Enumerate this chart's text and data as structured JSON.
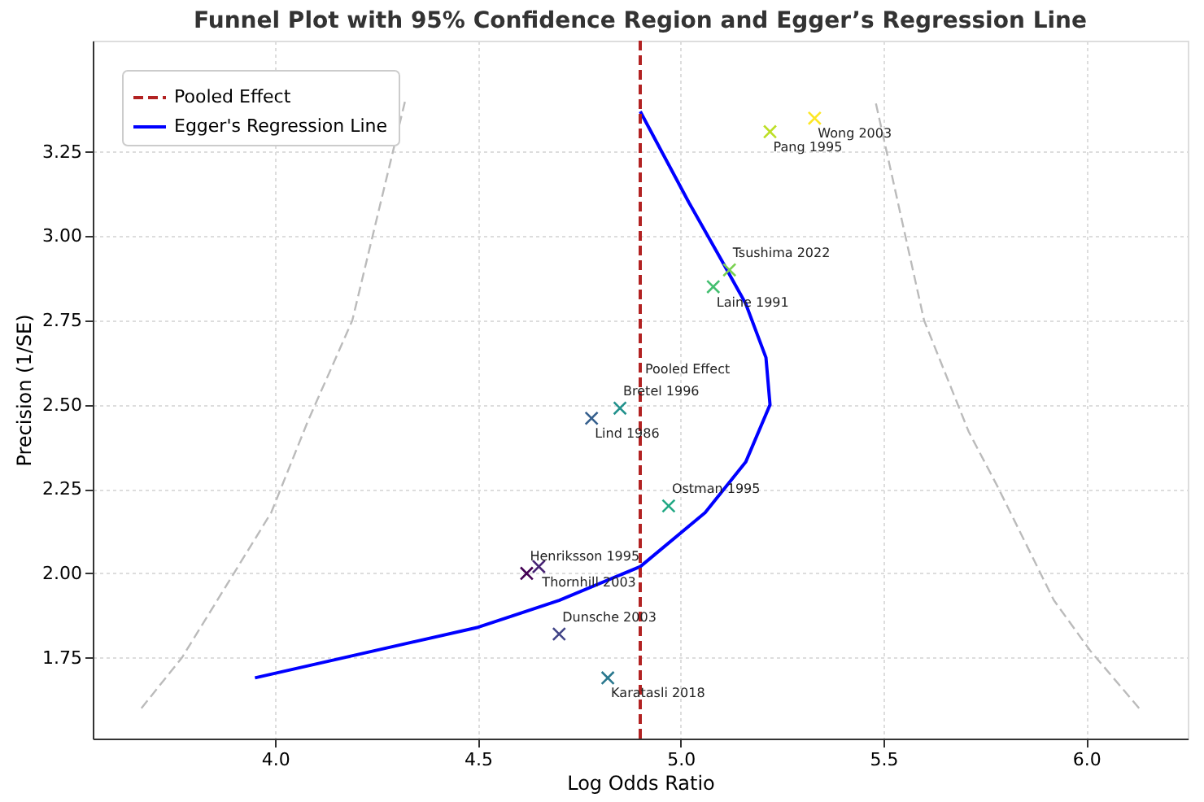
{
  "chart_data": {
    "type": "scatter",
    "title": "Funnel Plot with 95% Confidence Region and Egger’s Regression Line",
    "xlabel": "Log Odds Ratio",
    "ylabel": "Precision (1/SE)",
    "xlim": [
      3.55,
      6.25
    ],
    "ylim": [
      1.51,
      3.58
    ],
    "xticks": [
      {
        "value": 4.0,
        "label": "4.0"
      },
      {
        "value": 4.5,
        "label": "4.5"
      },
      {
        "value": 5.0,
        "label": "5.0"
      },
      {
        "value": 5.5,
        "label": "5.5"
      },
      {
        "value": 6.0,
        "label": "6.0"
      }
    ],
    "yticks": [
      {
        "value": 1.75,
        "label": "1.75"
      },
      {
        "value": 2.0,
        "label": "2.00"
      },
      {
        "value": 2.25,
        "label": "2.25"
      },
      {
        "value": 2.5,
        "label": "2.50"
      },
      {
        "value": 2.75,
        "label": "2.75"
      },
      {
        "value": 3.0,
        "label": "3.00"
      },
      {
        "value": 3.25,
        "label": "3.25"
      }
    ],
    "grid": true,
    "legend": "top left",
    "series": [
      {
        "type": "scatter",
        "marker": "cross",
        "x": [
          4.62,
          4.65,
          4.7,
          4.82,
          4.78,
          4.85,
          4.97,
          5.08,
          5.12,
          5.22,
          5.33
        ],
        "values": [
          2.0,
          2.02,
          1.82,
          1.69,
          2.46,
          2.49,
          2.2,
          2.85,
          2.9,
          3.31,
          3.35
        ],
        "colors": [
          "#440154",
          "#482475",
          "#414487",
          "#2a788e",
          "#355f8d",
          "#21918c",
          "#22a884",
          "#44bf70",
          "#7ad151",
          "#bddf26",
          "#fde725"
        ]
      },
      {
        "type": "line",
        "name": "Egger's Regression Line",
        "color": "#0000ff",
        "line_style": "solid",
        "x": [
          3.95,
          4.5,
          4.7,
          4.9,
          5.06,
          5.16,
          5.22,
          5.21,
          5.16,
          5.1,
          5.02,
          4.9
        ],
        "values": [
          1.69,
          1.84,
          1.92,
          2.02,
          2.18,
          2.33,
          2.5,
          2.64,
          2.8,
          2.93,
          3.1,
          3.37
        ]
      },
      {
        "type": "line",
        "color": "#bbbbbb",
        "line_style": "dashed",
        "x": [
          3.67,
          3.77,
          3.99,
          4.08,
          4.19,
          4.32
        ],
        "values": [
          1.6,
          1.75,
          2.18,
          2.45,
          2.75,
          3.4
        ]
      },
      {
        "type": "line",
        "color": "#bbbbbb",
        "line_style": "dashed",
        "x": [
          6.13,
          6.01,
          5.92,
          5.78,
          5.71,
          5.6,
          5.48
        ],
        "values": [
          1.6,
          1.77,
          1.92,
          2.26,
          2.42,
          2.75,
          3.4
        ]
      }
    ],
    "ref_lines": [
      {
        "axis": "x",
        "value": 4.9,
        "label": "Pooled Effect",
        "color": "#b22222",
        "line_style": "dashed"
      }
    ],
    "annotations": [
      {
        "text": "Thornhill 2003",
        "x": 4.65,
        "y": 2.02
      },
      {
        "text": "Henriksson 1995",
        "x": 4.62,
        "y": 2.0
      },
      {
        "text": "Lind 1986",
        "x": 4.78,
        "y": 2.46
      },
      {
        "text": "Bretel 1996",
        "x": 4.85,
        "y": 2.49
      },
      {
        "text": "Karatasli 2018",
        "x": 4.82,
        "y": 1.69
      },
      {
        "text": "Dunsche 2003",
        "x": 4.7,
        "y": 1.82
      },
      {
        "text": "Laine 1991",
        "x": 5.08,
        "y": 2.85
      },
      {
        "text": "Tsushima 2022",
        "x": 5.12,
        "y": 2.9
      },
      {
        "text": "Pang 1995",
        "x": 5.22,
        "y": 3.31
      },
      {
        "text": "Ostman 1995",
        "x": 4.97,
        "y": 2.2
      },
      {
        "text": "Wong 2003",
        "x": 5.33,
        "y": 3.35
      }
    ]
  }
}
